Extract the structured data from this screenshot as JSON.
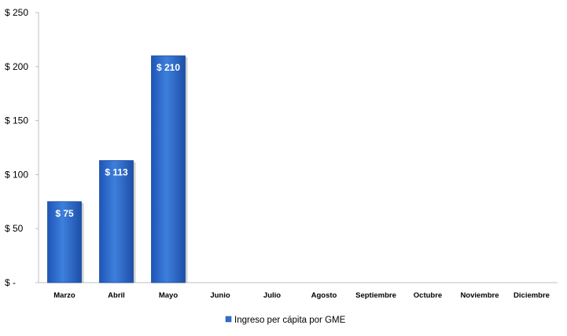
{
  "chart_data": {
    "type": "bar",
    "categories": [
      "Marzo",
      "Abril",
      "Mayo",
      "Junio",
      "Julio",
      "Agosto",
      "Septiembre",
      "Octubre",
      "Noviembre",
      "Diciembre"
    ],
    "series": [
      {
        "name": "Ingreso per cápita por GME",
        "values": [
          75,
          113,
          210,
          null,
          null,
          null,
          null,
          null,
          null,
          null
        ],
        "data_labels": [
          "$ 75",
          "$ 113",
          "$ 210",
          "",
          "",
          "",
          "",
          "",
          "",
          ""
        ],
        "color": "#2f6fd0"
      }
    ],
    "ylim": [
      0,
      250
    ],
    "yticks": [
      0,
      50,
      100,
      150,
      200,
      250
    ],
    "ytick_labels": [
      "$ -",
      "$ 50",
      "$ 100",
      "$ 150",
      "$ 200",
      "$ 250"
    ],
    "grid": false,
    "legend_position": "bottom"
  }
}
